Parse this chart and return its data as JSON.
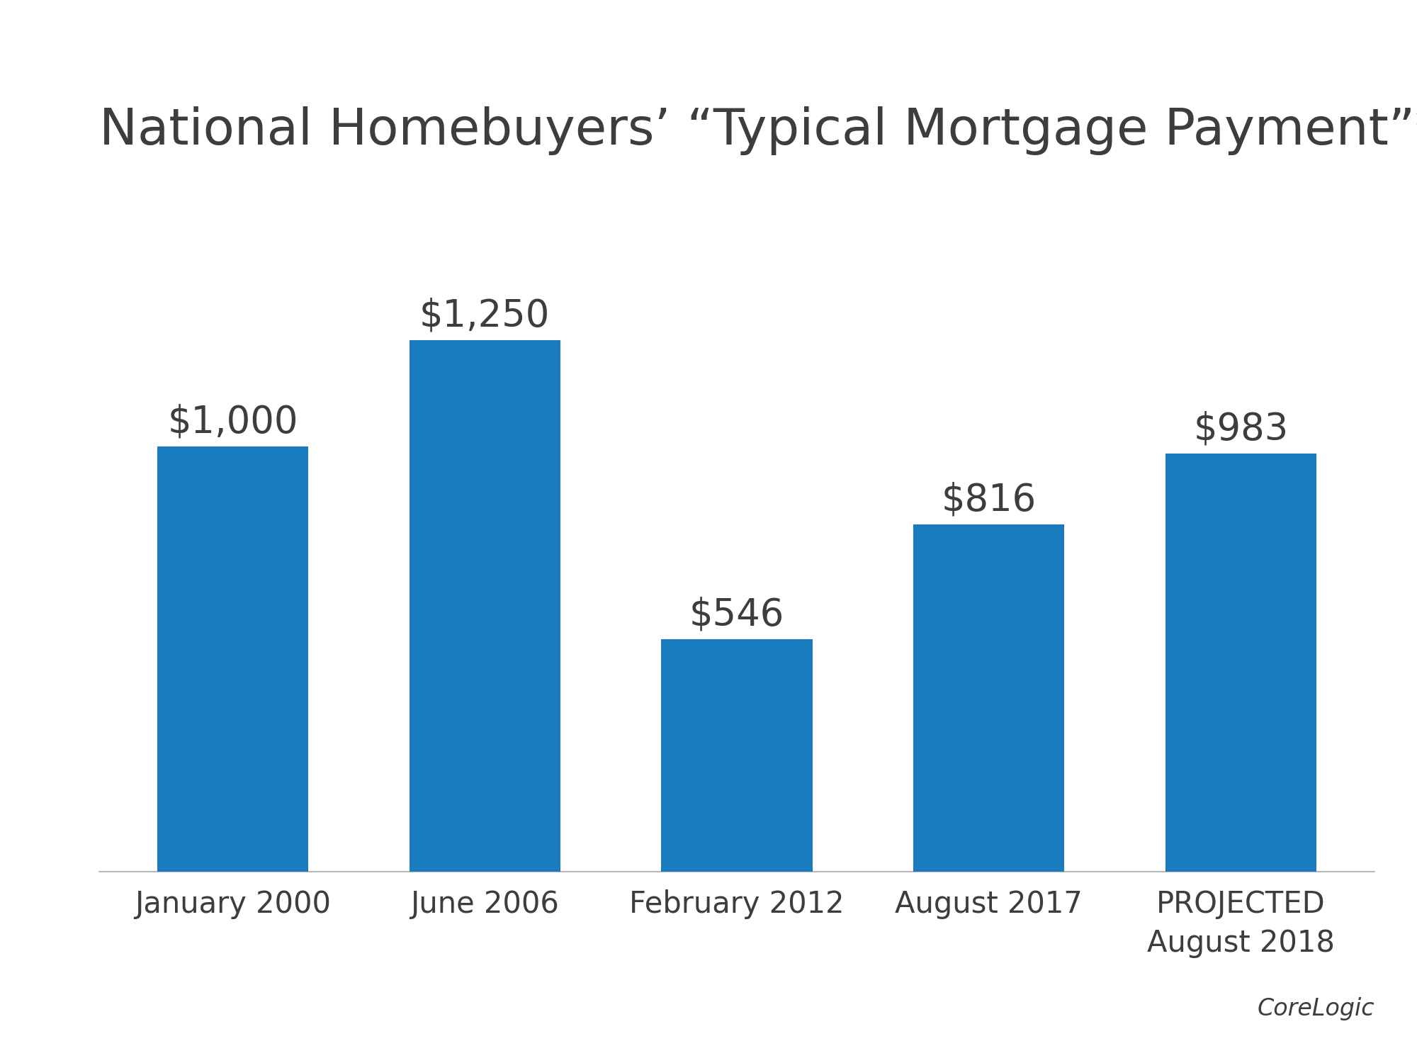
{
  "title": "National Homebuyers’ “Typical Mortgage Payment”*",
  "categories": [
    "January 2000",
    "June 2006",
    "February 2012",
    "August 2017",
    "PROJECTED\nAugust 2018"
  ],
  "values": [
    1000,
    1250,
    546,
    816,
    983
  ],
  "value_labels": [
    "$1,000",
    "$1,250",
    "$546",
    "$816",
    "$983"
  ],
  "bar_color": "#1a7bbf",
  "background_color": "#ffffff",
  "text_color": "#3d3d3d",
  "title_fontsize": 52,
  "label_fontsize": 38,
  "tick_fontsize": 30,
  "source_text": "CoreLogic",
  "source_fontsize": 24,
  "ylim": [
    0,
    1500
  ]
}
